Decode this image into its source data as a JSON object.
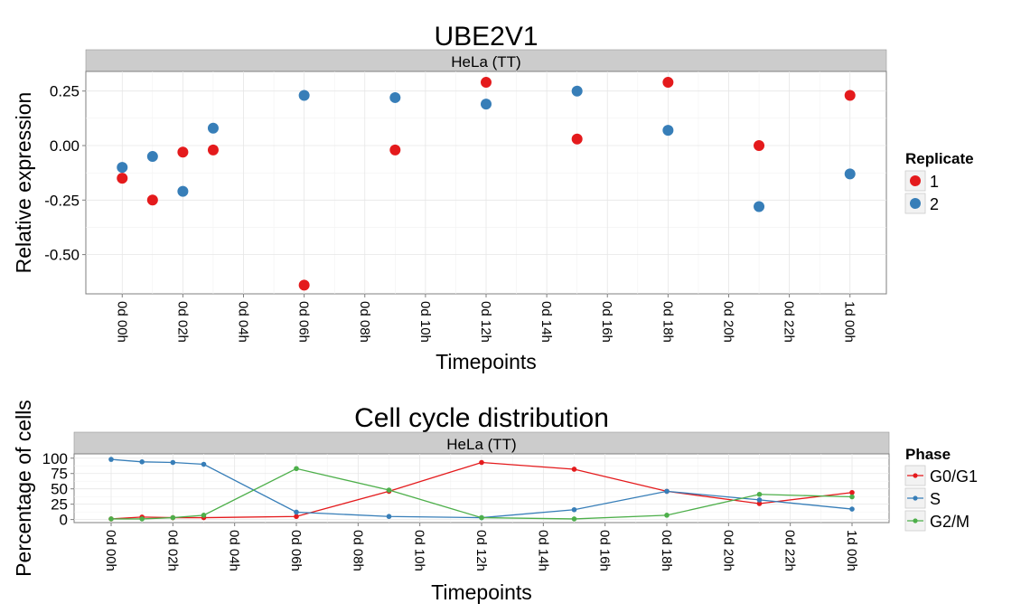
{
  "chart_data": [
    {
      "type": "scatter",
      "title": "UBE2V1",
      "facet_label": "HeLa (TT)",
      "xlabel": "Timepoints",
      "ylabel": "Relative expression",
      "x_tick_labels": [
        "0d 00h",
        "0d 02h",
        "0d 04h",
        "0d 06h",
        "0d 08h",
        "0d 10h",
        "0d 12h",
        "0d 14h",
        "0d 16h",
        "0d 18h",
        "0d 20h",
        "0d 22h",
        "1d 00h"
      ],
      "x_tick_hours": [
        0,
        2,
        4,
        6,
        8,
        10,
        12,
        14,
        16,
        18,
        20,
        22,
        24
      ],
      "y_tick_labels": [
        "0.25",
        "0.00",
        "-0.25",
        "-0.50"
      ],
      "y_tick_values": [
        0.25,
        0.0,
        -0.25,
        -0.5
      ],
      "xlim": [
        -1.2,
        25.2
      ],
      "ylim": [
        -0.68,
        0.34
      ],
      "grid": true,
      "legend": {
        "title": "Replicate",
        "position": "right"
      },
      "series": [
        {
          "name": "1",
          "color": "#e41a1c",
          "x": [
            0,
            1,
            2,
            3,
            6,
            9,
            12,
            15,
            18,
            21,
            24
          ],
          "y": [
            -0.15,
            -0.25,
            -0.03,
            -0.02,
            -0.64,
            -0.02,
            0.29,
            0.03,
            0.29,
            0.0,
            0.23
          ]
        },
        {
          "name": "2",
          "color": "#377eb8",
          "x": [
            0,
            1,
            2,
            3,
            6,
            9,
            12,
            15,
            18,
            21,
            24
          ],
          "y": [
            -0.1,
            -0.05,
            -0.21,
            0.08,
            0.23,
            0.22,
            0.19,
            0.25,
            0.07,
            -0.28,
            -0.13
          ]
        }
      ]
    },
    {
      "type": "line",
      "title": "Cell cycle distribution",
      "facet_label": "HeLa (TT)",
      "xlabel": "Timepoints",
      "ylabel": "Percentage of cells",
      "x_tick_labels": [
        "0d 00h",
        "0d 02h",
        "0d 04h",
        "0d 06h",
        "0d 08h",
        "0d 10h",
        "0d 12h",
        "0d 14h",
        "0d 16h",
        "0d 18h",
        "0d 20h",
        "0d 22h",
        "1d 00h"
      ],
      "x_tick_hours": [
        0,
        2,
        4,
        6,
        8,
        10,
        12,
        14,
        16,
        18,
        20,
        22,
        24
      ],
      "y_tick_labels": [
        "100",
        "75",
        "50",
        "25",
        "0"
      ],
      "y_tick_values": [
        100,
        75,
        50,
        25,
        0
      ],
      "xlim": [
        -1.2,
        25.2
      ],
      "ylim": [
        -5,
        107
      ],
      "grid": true,
      "legend": {
        "title": "Phase",
        "position": "right"
      },
      "series": [
        {
          "name": "G0/G1",
          "color": "#e41a1c",
          "x": [
            0,
            1,
            2,
            3,
            6,
            9,
            12,
            15,
            18,
            21,
            24
          ],
          "y": [
            1,
            4,
            3,
            3,
            5,
            46,
            93,
            82,
            46,
            26,
            44
          ]
        },
        {
          "name": "S",
          "color": "#377eb8",
          "x": [
            0,
            1,
            2,
            3,
            6,
            9,
            12,
            15,
            18,
            21,
            24
          ],
          "y": [
            98,
            94,
            93,
            90,
            12,
            5,
            3,
            16,
            46,
            32,
            17
          ]
        },
        {
          "name": "G2/M",
          "color": "#4daf4a",
          "x": [
            0,
            1,
            2,
            3,
            6,
            9,
            12,
            15,
            18,
            21,
            24
          ],
          "y": [
            1,
            1,
            3,
            7,
            83,
            48,
            3,
            1,
            7,
            41,
            37
          ]
        }
      ]
    }
  ]
}
